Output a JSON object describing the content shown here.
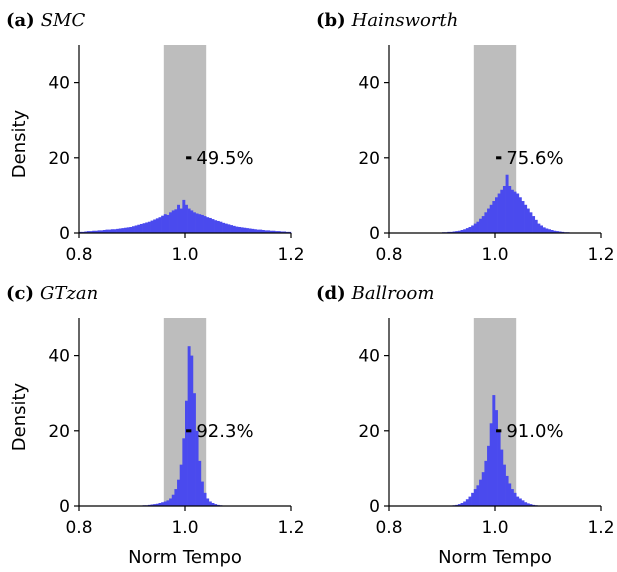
{
  "colors": {
    "bar": "#4a4aee",
    "band": "#bdbdbd",
    "axis": "#000000"
  },
  "chart_data": [
    {
      "type": "bar",
      "panel_letter": "(a)",
      "panel_name": "SMC",
      "percentage_label": "49.5%",
      "ylabel": "Density",
      "xlabel": "",
      "xlim": [
        0.8,
        1.2
      ],
      "ylim": [
        0,
        50
      ],
      "xticks": [
        "0.8",
        "1.0",
        "1.2"
      ],
      "yticks": [
        "0",
        "20",
        "40"
      ],
      "shaded_band": [
        0.96,
        1.04
      ],
      "marker_y": 20,
      "bin_width": 0.005,
      "bin_start": 0.8,
      "values": [
        0.3,
        0.3,
        0.4,
        0.5,
        0.5,
        0.6,
        0.6,
        0.7,
        0.7,
        0.8,
        0.9,
        0.9,
        1.0,
        1.0,
        1.1,
        1.2,
        1.3,
        1.4,
        1.5,
        1.6,
        1.8,
        2.0,
        2.2,
        2.4,
        2.6,
        2.8,
        3.0,
        3.3,
        3.6,
        3.9,
        4.2,
        4.6,
        5.0,
        4.8,
        5.5,
        6.0,
        6.3,
        7.5,
        6.5,
        8.8,
        7.5,
        6.5,
        6.0,
        5.5,
        5.2,
        5.0,
        4.8,
        4.5,
        4.2,
        4.0,
        3.7,
        3.4,
        3.2,
        3.0,
        2.7,
        2.5,
        2.3,
        2.1,
        1.9,
        1.7,
        1.6,
        1.5,
        1.4,
        1.3,
        1.2,
        1.1,
        1.0,
        0.9,
        0.9,
        0.8,
        0.7,
        0.7,
        0.6,
        0.6,
        0.5,
        0.5,
        0.4,
        0.4,
        0.3,
        0.3
      ]
    },
    {
      "type": "bar",
      "panel_letter": "(b)",
      "panel_name": "Hainsworth",
      "percentage_label": "75.6%",
      "ylabel": "",
      "xlabel": "",
      "xlim": [
        0.8,
        1.2
      ],
      "ylim": [
        0,
        50
      ],
      "xticks": [
        "0.8",
        "1.0",
        "1.2"
      ],
      "yticks": [
        "0",
        "20",
        "40"
      ],
      "shaded_band": [
        0.96,
        1.04
      ],
      "marker_y": 20,
      "bin_width": 0.005,
      "bin_start": 0.8,
      "values": [
        0,
        0,
        0,
        0,
        0,
        0,
        0,
        0,
        0,
        0,
        0,
        0,
        0,
        0,
        0,
        0,
        0,
        0,
        0,
        0,
        0.2,
        0.2,
        0.3,
        0.3,
        0.4,
        0.5,
        0.6,
        0.8,
        1.0,
        1.3,
        1.6,
        2.0,
        2.5,
        3.0,
        3.8,
        4.5,
        5.5,
        6.5,
        7.5,
        8.5,
        9.5,
        10.5,
        11.5,
        12.5,
        15.5,
        12.5,
        11.5,
        11.0,
        10.5,
        9.5,
        8.5,
        7.5,
        6.5,
        5.5,
        4.5,
        3.5,
        2.5,
        2.0,
        1.5,
        1.2,
        1.0,
        0.8,
        0.6,
        0.5,
        0.4,
        0.3,
        0.2,
        0.2,
        0.1,
        0,
        0,
        0,
        0,
        0,
        0,
        0,
        0,
        0,
        0,
        0
      ]
    },
    {
      "type": "bar",
      "panel_letter": "(c)",
      "panel_name": "GTzan",
      "percentage_label": "92.3%",
      "ylabel": "Density",
      "xlabel": "Norm Tempo",
      "xlim": [
        0.8,
        1.2
      ],
      "ylim": [
        0,
        50
      ],
      "xticks": [
        "0.8",
        "1.0",
        "1.2"
      ],
      "yticks": [
        "0",
        "20",
        "40"
      ],
      "shaded_band": [
        0.96,
        1.04
      ],
      "marker_y": 20,
      "bin_width": 0.005,
      "bin_start": 0.8,
      "values": [
        0,
        0,
        0,
        0,
        0,
        0,
        0,
        0,
        0,
        0,
        0,
        0,
        0,
        0,
        0,
        0,
        0,
        0,
        0,
        0,
        0,
        0,
        0.1,
        0.1,
        0.2,
        0.2,
        0.3,
        0.4,
        0.5,
        0.6,
        0.8,
        1.0,
        1.2,
        1.5,
        2.0,
        3.0,
        4.5,
        7.0,
        11.0,
        18.0,
        28.0,
        42.5,
        40.0,
        30.0,
        20.0,
        12.0,
        6.5,
        3.5,
        2.0,
        1.2,
        0.8,
        0.5,
        0.3,
        0.2,
        0.1,
        0.1,
        0,
        0,
        0,
        0,
        0,
        0,
        0,
        0,
        0,
        0,
        0,
        0,
        0,
        0,
        0,
        0,
        0,
        0,
        0,
        0,
        0,
        0,
        0,
        0
      ]
    },
    {
      "type": "bar",
      "panel_letter": "(d)",
      "panel_name": "Ballroom",
      "percentage_label": "91.0%",
      "ylabel": "",
      "xlabel": "Norm Tempo",
      "xlim": [
        0.8,
        1.2
      ],
      "ylim": [
        0,
        50
      ],
      "xticks": [
        "0.8",
        "1.0",
        "1.2"
      ],
      "yticks": [
        "0",
        "20",
        "40"
      ],
      "shaded_band": [
        0.96,
        1.04
      ],
      "marker_y": 20,
      "bin_width": 0.005,
      "bin_start": 0.8,
      "values": [
        0,
        0,
        0,
        0,
        0,
        0,
        0,
        0,
        0,
        0,
        0,
        0,
        0,
        0,
        0,
        0,
        0,
        0,
        0,
        0,
        0,
        0,
        0,
        0,
        0.2,
        0.3,
        0.5,
        0.8,
        1.2,
        1.8,
        2.5,
        3.5,
        4.5,
        5.5,
        7.0,
        9.0,
        12.0,
        16.0,
        22.0,
        29.5,
        25.5,
        20.0,
        15.0,
        11.0,
        8.0,
        6.0,
        4.5,
        3.5,
        2.5,
        2.0,
        1.5,
        1.0,
        0.7,
        0.5,
        0.3,
        0.2,
        0.1,
        0,
        0,
        0,
        0,
        0,
        0,
        0,
        0,
        0,
        0,
        0,
        0,
        0,
        0,
        0,
        0,
        0,
        0,
        0,
        0,
        0,
        0,
        0
      ]
    }
  ]
}
